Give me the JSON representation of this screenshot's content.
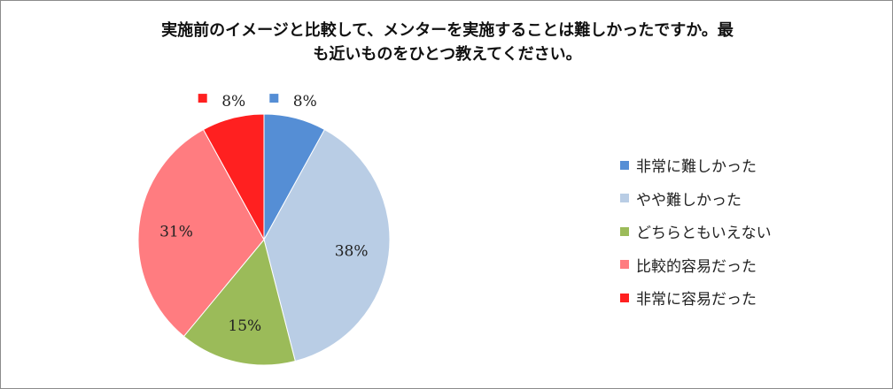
{
  "chart_data": {
    "type": "pie",
    "title": "実施前のイメージと比較して、メンターを実施することは難しかったですか。最も近いものをひとつ教えてください。",
    "title_lines": [
      "実施前のイメージと比較して、メンターを実施することは難しかったですか。最",
      "も近いものをひとつ教えてください。"
    ],
    "categories": [
      "非常に難しかった",
      "やや難しかった",
      "どちらともいえない",
      "比較的容易だった",
      "非常に容易だった"
    ],
    "values": [
      8,
      38,
      15,
      31,
      8
    ],
    "labels": [
      "8%",
      "38%",
      "15%",
      "31%",
      "8%"
    ],
    "unit": "%",
    "colors": [
      "#558ed5",
      "#b9cde5",
      "#9bbb59",
      "#ff7c80",
      "#ff2020"
    ],
    "start_angle_deg": 0,
    "direction": "clockwise",
    "legend_position": "right"
  }
}
